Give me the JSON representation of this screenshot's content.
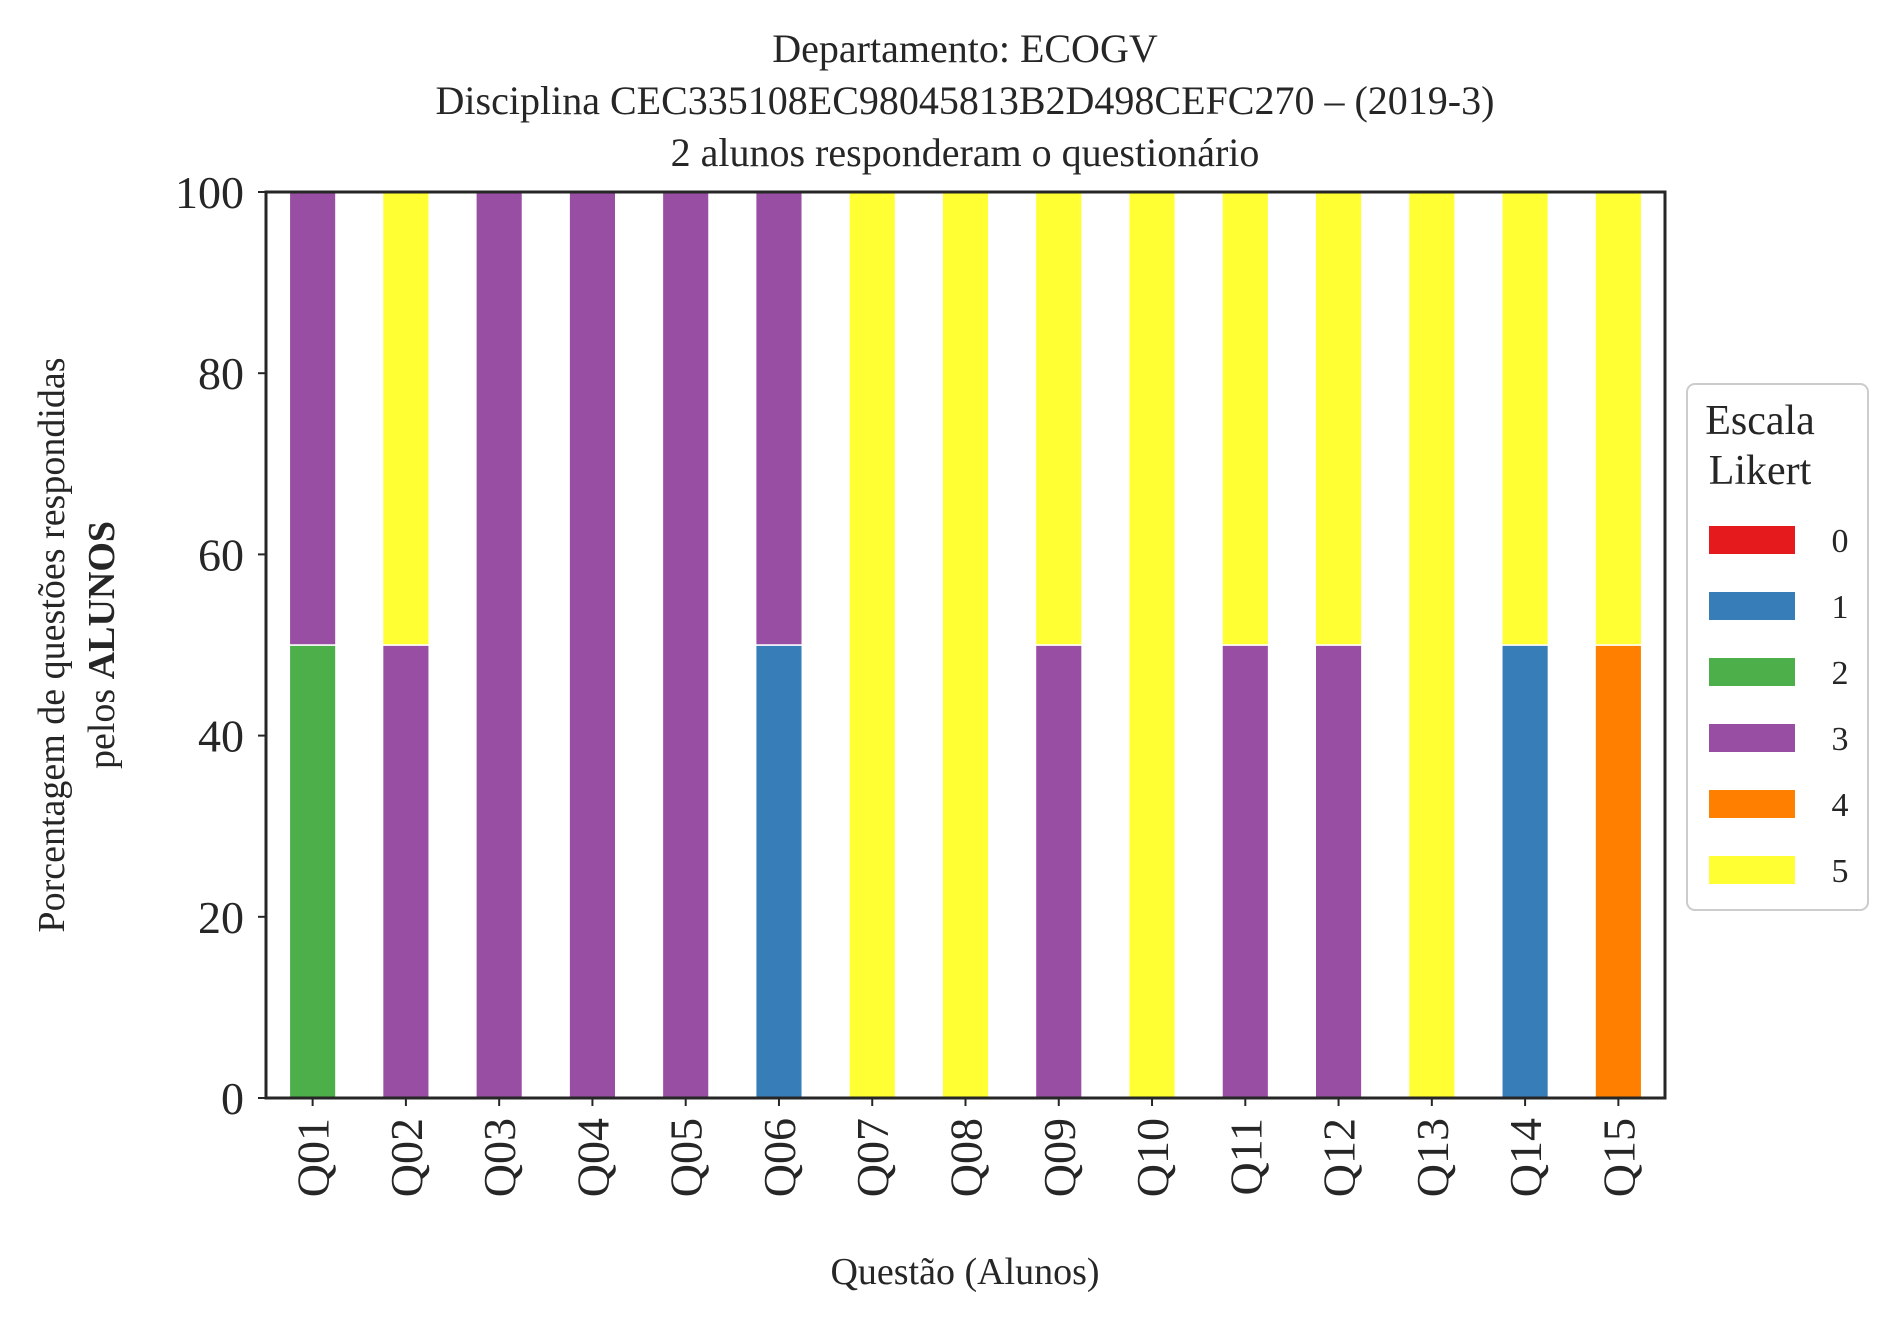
{
  "chart_data": {
    "type": "bar",
    "stacked": true,
    "title": [
      "Departamento: ECOGV",
      "Disciplina CEC335108EC98045813B2D498CEFC270 – (2019-3)",
      "2 alunos responderam o questionário"
    ],
    "xlabel": "Questão (Alunos)",
    "ylabel_line1": "Porcentagem de questões respondidas",
    "ylabel_line2_prefix": "pelos ",
    "ylabel_line2_bold": "ALUNOS",
    "ylim": [
      0,
      100
    ],
    "yticks": [
      "0",
      "20",
      "40",
      "60",
      "80",
      "100"
    ],
    "categories": [
      "Q01",
      "Q02",
      "Q03",
      "Q04",
      "Q05",
      "Q06",
      "Q07",
      "Q08",
      "Q09",
      "Q10",
      "Q11",
      "Q12",
      "Q13",
      "Q14",
      "Q15"
    ],
    "series": [
      {
        "name": "0",
        "color": "#e41a1c",
        "values": [
          0,
          0,
          0,
          0,
          0,
          0,
          0,
          0,
          0,
          0,
          0,
          0,
          0,
          0,
          0
        ]
      },
      {
        "name": "1",
        "color": "#377eb8",
        "values": [
          0,
          0,
          0,
          0,
          0,
          50,
          0,
          0,
          0,
          0,
          0,
          0,
          0,
          50,
          0
        ]
      },
      {
        "name": "2",
        "color": "#4daf4a",
        "values": [
          50,
          0,
          0,
          0,
          0,
          0,
          0,
          0,
          0,
          0,
          0,
          0,
          0,
          0,
          0
        ]
      },
      {
        "name": "3",
        "color": "#984ea3",
        "values": [
          50,
          50,
          100,
          100,
          100,
          50,
          0,
          0,
          50,
          0,
          50,
          50,
          0,
          0,
          0
        ]
      },
      {
        "name": "4",
        "color": "#ff7f00",
        "values": [
          0,
          0,
          0,
          0,
          0,
          0,
          0,
          0,
          0,
          0,
          0,
          0,
          0,
          0,
          50
        ]
      },
      {
        "name": "5",
        "color": "#ffff33",
        "values": [
          0,
          50,
          0,
          0,
          0,
          0,
          100,
          100,
          50,
          100,
          50,
          50,
          100,
          50,
          50
        ]
      }
    ],
    "legend": {
      "title_line1": "Escala",
      "title_line2": "Likert",
      "placement": "right"
    },
    "grid": false
  }
}
